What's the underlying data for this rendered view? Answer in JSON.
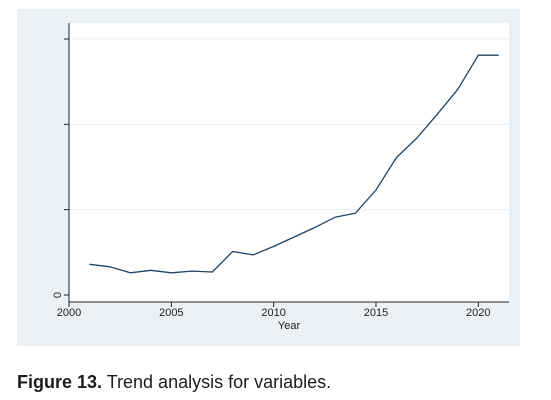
{
  "chart_data": {
    "type": "line",
    "title": "",
    "xlabel": "Year",
    "ylabel": "",
    "xlim": [
      2000,
      2021.5
    ],
    "ylim": [
      0,
      3
    ],
    "x_ticks": [
      2000,
      2005,
      2010,
      2015,
      2020
    ],
    "y_ticks": [
      0,
      1,
      2,
      3
    ],
    "y_tick_labels": [
      "0",
      "",
      "",
      ""
    ],
    "grid": "horizontal",
    "x": [
      2001,
      2002,
      2003,
      2004,
      2005,
      2006,
      2007,
      2008,
      2009,
      2010,
      2011,
      2012,
      2013,
      2014,
      2015,
      2016,
      2017,
      2018,
      2019,
      2020,
      2021
    ],
    "series": [
      {
        "values": [
          0.36,
          0.33,
          0.26,
          0.29,
          0.26,
          0.28,
          0.27,
          0.51,
          0.47,
          0.57,
          0.68,
          0.79,
          0.91,
          0.96,
          1.23,
          1.61,
          1.84,
          2.12,
          2.41,
          2.81,
          2.81
        ],
        "color": "#1e4466"
      }
    ]
  },
  "caption": {
    "label": "Figure 13.",
    "text": " Trend analysis for variables."
  }
}
